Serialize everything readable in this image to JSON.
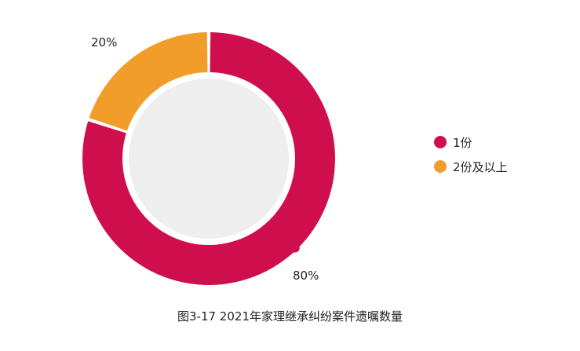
{
  "chart_data": {
    "type": "pie",
    "variant": "donut",
    "categories": [
      "1份",
      "2份及以上"
    ],
    "values": [
      80,
      20
    ],
    "data_labels": [
      "80%",
      "20%"
    ],
    "colors": [
      "#cf0f4d",
      "#f19d2a"
    ],
    "center_fill": "#eeeeee",
    "title": "",
    "caption": "图3-17  2021年家理继承纠纷案件遗嘱数量",
    "legend_position": "right"
  }
}
